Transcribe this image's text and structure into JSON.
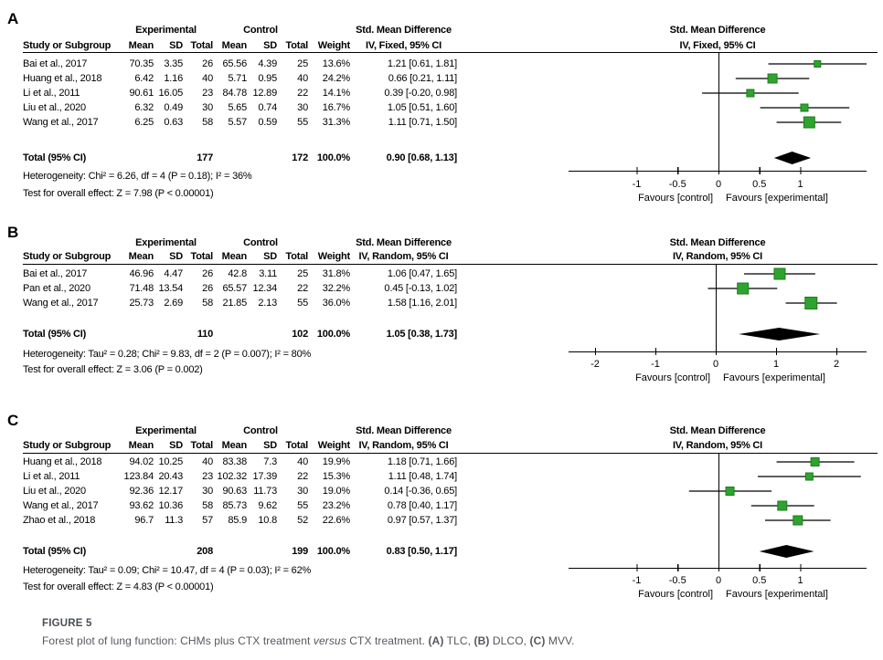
{
  "appearance": {
    "square_fill": "#2EA42E",
    "square_border": "#1D7C1D",
    "diamond_color": "#000000",
    "line_color": "#000000",
    "caption_label_color": "#4a4e57",
    "caption_text_color": "#55585f"
  },
  "caption": {
    "label": "FIGURE 5",
    "segments": [
      {
        "text": "Forest plot of lung function: CHMs plus CTX treatment ",
        "style": "normal"
      },
      {
        "text": "versus",
        "style": "italic"
      },
      {
        "text": " CTX treatment. ",
        "style": "normal"
      },
      {
        "text": "(A)",
        "style": "bold"
      },
      {
        "text": " TLC, ",
        "style": "normal"
      },
      {
        "text": "(B)",
        "style": "bold"
      },
      {
        "text": " DLCO, ",
        "style": "normal"
      },
      {
        "text": "(C)",
        "style": "bold"
      },
      {
        "text": " MVV.",
        "style": "normal"
      }
    ]
  },
  "chart_data": [
    {
      "type": "forest",
      "panel": "A",
      "outcome": "TLC",
      "group_headers": [
        "Experimental",
        "Control",
        "Std. Mean Difference"
      ],
      "plot_header": [
        "Std. Mean Difference",
        "IV, Fixed, 95% CI"
      ],
      "columns": [
        "Study or Subgroup",
        "Mean",
        "SD",
        "Total",
        "Mean",
        "SD",
        "Total",
        "Weight",
        "IV, Fixed, 95% CI"
      ],
      "studies": [
        {
          "name": "Bai et al., 2017",
          "exp_mean": "70.35",
          "exp_sd": "3.35",
          "exp_total": "26",
          "ctl_mean": "65.56",
          "ctl_sd": "4.39",
          "ctl_total": "25",
          "weight": "13.6%",
          "weight_pct": 13.6,
          "smd": 1.21,
          "ci_low": 0.61,
          "ci_high": 1.81,
          "ci_label": "1.21 [0.61, 1.81]"
        },
        {
          "name": "Huang et al., 2018",
          "exp_mean": "6.42",
          "exp_sd": "1.16",
          "exp_total": "40",
          "ctl_mean": "5.71",
          "ctl_sd": "0.95",
          "ctl_total": "40",
          "weight": "24.2%",
          "weight_pct": 24.2,
          "smd": 0.66,
          "ci_low": 0.21,
          "ci_high": 1.11,
          "ci_label": "0.66 [0.21, 1.11]"
        },
        {
          "name": "Li et al., 2011",
          "exp_mean": "90.61",
          "exp_sd": "16.05",
          "exp_total": "23",
          "ctl_mean": "84.78",
          "ctl_sd": "12.89",
          "ctl_total": "22",
          "weight": "14.1%",
          "weight_pct": 14.1,
          "smd": 0.39,
          "ci_low": -0.2,
          "ci_high": 0.98,
          "ci_label": "0.39 [-0.20, 0.98]"
        },
        {
          "name": "Liu et al., 2020",
          "exp_mean": "6.32",
          "exp_sd": "0.49",
          "exp_total": "30",
          "ctl_mean": "5.65",
          "ctl_sd": "0.74",
          "ctl_total": "30",
          "weight": "16.7%",
          "weight_pct": 16.7,
          "smd": 1.05,
          "ci_low": 0.51,
          "ci_high": 1.6,
          "ci_label": "1.05 [0.51, 1.60]"
        },
        {
          "name": "Wang et al., 2017",
          "exp_mean": "6.25",
          "exp_sd": "0.63",
          "exp_total": "58",
          "ctl_mean": "5.57",
          "ctl_sd": "0.59",
          "ctl_total": "55",
          "weight": "31.3%",
          "weight_pct": 31.3,
          "smd": 1.11,
          "ci_low": 0.71,
          "ci_high": 1.5,
          "ci_label": "1.11 [0.71, 1.50]"
        }
      ],
      "total": {
        "label": "Total (95% CI)",
        "exp_total": "177",
        "ctl_total": "172",
        "weight": "100.0%",
        "smd": 0.9,
        "ci_low": 0.68,
        "ci_high": 1.13,
        "ci_label": "0.90 [0.68, 1.13]"
      },
      "heterogeneity": "Heterogeneity: Chi² = 6.26, df = 4 (P = 0.18); I² = 36%",
      "overall_effect": "Test for overall effect: Z = 7.98 (P < 0.00001)",
      "axis_ticks": [
        -1,
        -0.5,
        0,
        0.5,
        1
      ],
      "axis_tick_labels": [
        "-1",
        "-0.5",
        "0",
        "0.5",
        "1"
      ],
      "favours_left": "Favours [control]",
      "favours_right": "Favours [experimental]"
    },
    {
      "type": "forest",
      "panel": "B",
      "outcome": "DLCO",
      "group_headers": [
        "Experimental",
        "Control",
        "Std. Mean Difference"
      ],
      "plot_header": [
        "Std. Mean Difference",
        "IV, Random, 95% CI"
      ],
      "columns": [
        "Study or Subgroup",
        "Mean",
        "SD",
        "Total",
        "Mean",
        "SD",
        "Total",
        "Weight",
        "IV, Random, 95% CI"
      ],
      "studies": [
        {
          "name": "Bai et al., 2017",
          "exp_mean": "46.96",
          "exp_sd": "4.47",
          "exp_total": "26",
          "ctl_mean": "42.8",
          "ctl_sd": "3.11",
          "ctl_total": "25",
          "weight": "31.8%",
          "weight_pct": 31.8,
          "smd": 1.06,
          "ci_low": 0.47,
          "ci_high": 1.65,
          "ci_label": "1.06 [0.47, 1.65]"
        },
        {
          "name": "Pan et al., 2020",
          "exp_mean": "71.48",
          "exp_sd": "13.54",
          "exp_total": "26",
          "ctl_mean": "65.57",
          "ctl_sd": "12.34",
          "ctl_total": "22",
          "weight": "32.2%",
          "weight_pct": 32.2,
          "smd": 0.45,
          "ci_low": -0.13,
          "ci_high": 1.02,
          "ci_label": "0.45 [-0.13, 1.02]"
        },
        {
          "name": "Wang et al., 2017",
          "exp_mean": "25.73",
          "exp_sd": "2.69",
          "exp_total": "58",
          "ctl_mean": "21.85",
          "ctl_sd": "2.13",
          "ctl_total": "55",
          "weight": "36.0%",
          "weight_pct": 36.0,
          "smd": 1.58,
          "ci_low": 1.16,
          "ci_high": 2.01,
          "ci_label": "1.58 [1.16, 2.01]"
        }
      ],
      "total": {
        "label": "Total (95% CI)",
        "exp_total": "110",
        "ctl_total": "102",
        "weight": "100.0%",
        "smd": 1.05,
        "ci_low": 0.38,
        "ci_high": 1.73,
        "ci_label": "1.05 [0.38, 1.73]"
      },
      "heterogeneity": "Heterogeneity: Tau² = 0.28; Chi² = 9.83, df = 2 (P = 0.007); I² = 80%",
      "overall_effect": "Test for overall effect: Z = 3.06 (P = 0.002)",
      "axis_ticks": [
        -2,
        -1,
        0,
        1,
        2
      ],
      "axis_tick_labels": [
        "-2",
        "-1",
        "0",
        "1",
        "2"
      ],
      "favours_left": "Favours [control]",
      "favours_right": "Favours [experimental]"
    },
    {
      "type": "forest",
      "panel": "C",
      "outcome": "MVV",
      "group_headers": [
        "Experimental",
        "Control",
        "Std. Mean Difference"
      ],
      "plot_header": [
        "Std. Mean Difference",
        "IV, Random, 95% CI"
      ],
      "columns": [
        "Study or Subgroup",
        "Mean",
        "SD",
        "Total",
        "Mean",
        "SD",
        "Total",
        "Weight",
        "IV, Random, 95% CI"
      ],
      "studies": [
        {
          "name": "Huang et al., 2018",
          "exp_mean": "94.02",
          "exp_sd": "10.25",
          "exp_total": "40",
          "ctl_mean": "83.38",
          "ctl_sd": "7.3",
          "ctl_total": "40",
          "weight": "19.9%",
          "weight_pct": 19.9,
          "smd": 1.18,
          "ci_low": 0.71,
          "ci_high": 1.66,
          "ci_label": "1.18 [0.71, 1.66]"
        },
        {
          "name": "Li et al., 2011",
          "exp_mean": "123.84",
          "exp_sd": "20.43",
          "exp_total": "23",
          "ctl_mean": "102.32",
          "ctl_sd": "17.39",
          "ctl_total": "22",
          "weight": "15.3%",
          "weight_pct": 15.3,
          "smd": 1.11,
          "ci_low": 0.48,
          "ci_high": 1.74,
          "ci_label": "1.11 [0.48, 1.74]"
        },
        {
          "name": "Liu et al., 2020",
          "exp_mean": "92.36",
          "exp_sd": "12.17",
          "exp_total": "30",
          "ctl_mean": "90.63",
          "ctl_sd": "11.73",
          "ctl_total": "30",
          "weight": "19.0%",
          "weight_pct": 19.0,
          "smd": 0.14,
          "ci_low": -0.36,
          "ci_high": 0.65,
          "ci_label": "0.14 [-0.36, 0.65]"
        },
        {
          "name": "Wang et al., 2017",
          "exp_mean": "93.62",
          "exp_sd": "10.36",
          "exp_total": "58",
          "ctl_mean": "85.73",
          "ctl_sd": "9.62",
          "ctl_total": "55",
          "weight": "23.2%",
          "weight_pct": 23.2,
          "smd": 0.78,
          "ci_low": 0.4,
          "ci_high": 1.17,
          "ci_label": "0.78 [0.40, 1.17]"
        },
        {
          "name": "Zhao et al., 2018",
          "exp_mean": "96.7",
          "exp_sd": "11.3",
          "exp_total": "57",
          "ctl_mean": "85.9",
          "ctl_sd": "10.8",
          "ctl_total": "52",
          "weight": "22.6%",
          "weight_pct": 22.6,
          "smd": 0.97,
          "ci_low": 0.57,
          "ci_high": 1.37,
          "ci_label": "0.97 [0.57, 1.37]"
        }
      ],
      "total": {
        "label": "Total (95% CI)",
        "exp_total": "208",
        "ctl_total": "199",
        "weight": "100.0%",
        "smd": 0.83,
        "ci_low": 0.5,
        "ci_high": 1.17,
        "ci_label": "0.83 [0.50, 1.17]"
      },
      "heterogeneity": "Heterogeneity: Tau² = 0.09; Chi² = 10.47, df = 4 (P = 0.03); I² = 62%",
      "overall_effect": "Test for overall effect: Z = 4.83 (P < 0.00001)",
      "axis_ticks": [
        -1,
        -0.5,
        0,
        0.5,
        1
      ],
      "axis_tick_labels": [
        "-1",
        "-0.5",
        "0",
        "0.5",
        "1"
      ],
      "favours_left": "Favours [control]",
      "favours_right": "Favours [experimental]"
    }
  ]
}
